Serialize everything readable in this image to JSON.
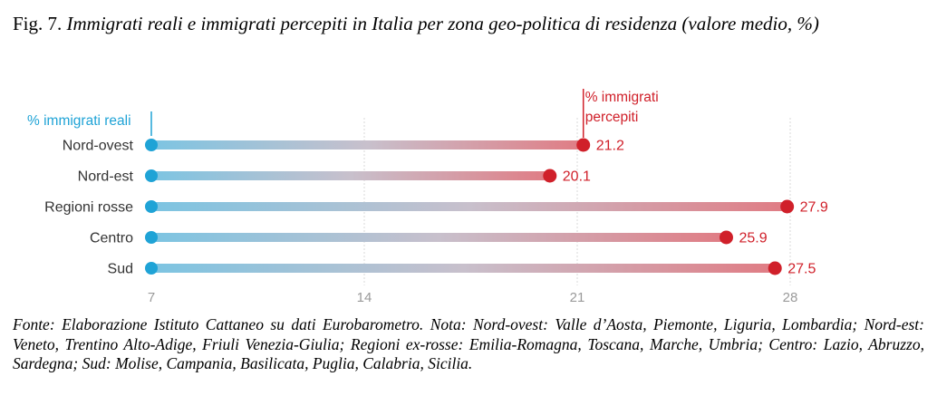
{
  "figure": {
    "number": "Fig. 7.",
    "title": "Immigrati reali e immigrati percepiti in Italia per zona geo-politica di residenza (valore medio, %)"
  },
  "chart_data": {
    "type": "dumbbell",
    "categories": [
      "Nord-ovest",
      "Nord-est",
      "Regioni rosse",
      "Centro",
      "Sud"
    ],
    "series": [
      {
        "name": "% immigrati reali",
        "values": [
          7,
          7,
          7,
          7,
          7
        ],
        "color": "#1fa3d6"
      },
      {
        "name": "% immigrati percepiti",
        "values": [
          21.2,
          20.1,
          27.9,
          25.9,
          27.5
        ],
        "color": "#d0202a"
      }
    ],
    "value_labels": [
      "21.2",
      "20.1",
      "27.9",
      "25.9",
      "27.5"
    ],
    "xticks": [
      "7",
      "14",
      "21",
      "28"
    ],
    "xtick_values": [
      7,
      14,
      21,
      28
    ],
    "xlim": [
      7,
      28
    ],
    "grid": "vertical"
  },
  "note": "Fonte: Elaborazione Istituto Cattaneo su dati Eurobarometro. Nota: Nord-ovest: Valle d’Aosta, Piemonte, Liguria, Lombardia; Nord-est: Veneto, Trentino Alto-Adige, Friuli Venezia-Giulia; Regioni ex-rosse: Emilia-Romagna, Toscana, Marche, Umbria; Centro: Lazio, Abruzzo, Sardegna; Sud: Molise, Campania, Basilicata, Puglia, Calabria, Sicilia."
}
